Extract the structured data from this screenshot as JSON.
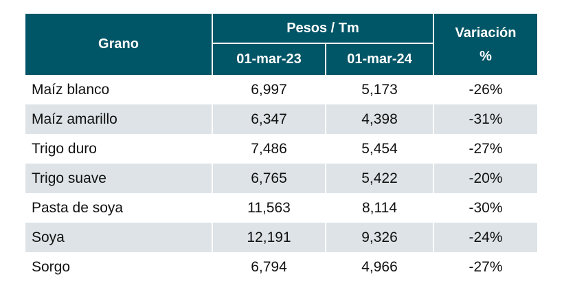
{
  "table": {
    "headers": {
      "grain": "Grano",
      "price_group": "Pesos / Tm",
      "date1": "01-mar-23",
      "date2": "01-mar-24",
      "variation": "Variación\n%"
    },
    "rows": [
      {
        "grain": "Maíz blanco",
        "v1": "6,997",
        "v2": "5,173",
        "var": "-26%"
      },
      {
        "grain": "Maíz amarillo",
        "v1": "6,347",
        "v2": "4,398",
        "var": "-31%"
      },
      {
        "grain": "Trigo duro",
        "v1": "7,486",
        "v2": "5,454",
        "var": "-27%"
      },
      {
        "grain": "Trigo suave",
        "v1": "6,765",
        "v2": "5,422",
        "var": "-20%"
      },
      {
        "grain": "Pasta de soya",
        "v1": "11,563",
        "v2": "8,114",
        "var": "-30%"
      },
      {
        "grain": "Soya",
        "v1": "12,191",
        "v2": "9,326",
        "var": "-24%"
      },
      {
        "grain": "Sorgo",
        "v1": "6,794",
        "v2": "4,966",
        "var": "-27%"
      }
    ]
  },
  "colors": {
    "header_bg": "#005566",
    "header_text": "#ffffff",
    "row_shade": "#dde3e6",
    "row_plain": "#ffffff"
  }
}
